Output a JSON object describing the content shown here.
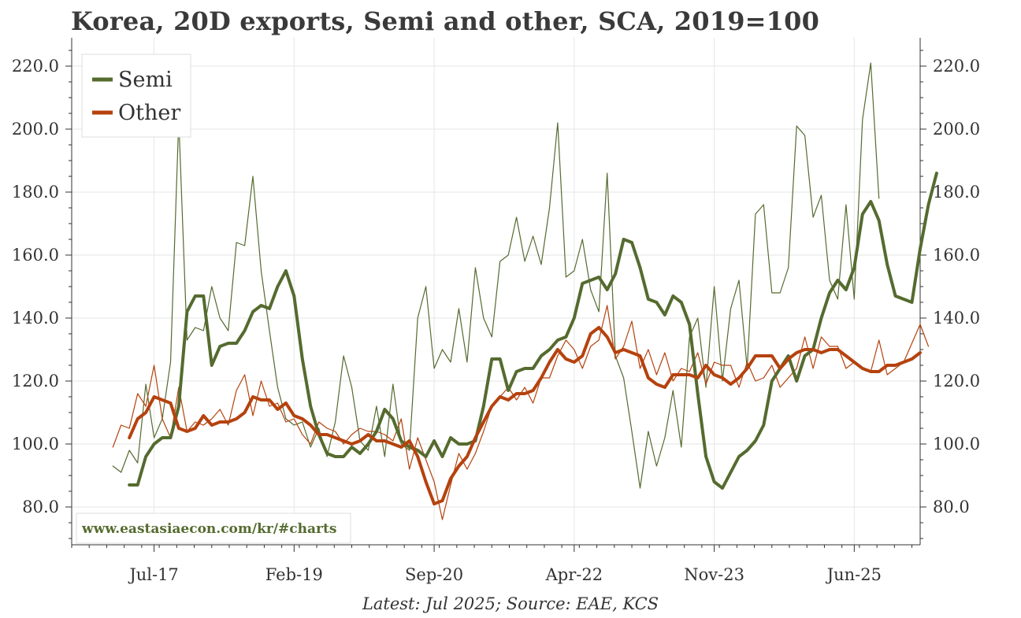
{
  "chart_data": {
    "type": "line",
    "title": "Korea, 20D exports, Semi and other, SCA, 2019=100",
    "xlabel": "",
    "ylabel": "",
    "x_tick_labels": [
      "Jul-17",
      "Feb-19",
      "Sep-20",
      "Apr-22",
      "Nov-23",
      "Jun-25"
    ],
    "y_tick_labels": [
      "80.0",
      "100.0",
      "120.0",
      "140.0",
      "160.0",
      "180.0",
      "200.0",
      "220.0"
    ],
    "y_ticks": [
      80,
      100,
      120,
      140,
      160,
      180,
      200,
      220
    ],
    "ylim": [
      68,
      229
    ],
    "xlim": [
      0,
      103
    ],
    "x_tick_positions": [
      10,
      27,
      44,
      61,
      78,
      95
    ],
    "grid": true,
    "legend_position": "top-left",
    "series": [
      {
        "name": "Semi (monthly)",
        "style": "thin",
        "color": "#556b2f",
        "start_index": 5,
        "values": [
          93,
          91,
          98,
          94,
          119,
          102,
          108,
          126,
          203,
          133,
          137,
          136,
          150,
          140,
          136,
          164,
          163,
          185,
          155,
          136,
          118,
          108,
          106,
          107,
          99,
          105,
          96,
          107,
          128,
          118,
          101,
          98,
          112,
          96,
          119,
          100,
          98,
          140,
          150,
          124,
          130,
          126,
          143,
          126,
          156,
          140,
          134,
          158,
          160,
          172,
          158,
          166,
          157,
          175,
          202,
          153,
          155,
          165,
          149,
          142,
          186,
          128,
          121,
          104,
          86,
          104,
          93,
          102,
          117,
          99,
          134,
          140,
          118,
          150,
          120,
          143,
          152,
          124,
          173,
          176,
          148,
          148,
          156,
          201,
          198,
          172,
          179,
          152,
          146,
          176,
          146,
          203,
          221,
          178
        ]
      },
      {
        "name": "Other (monthly)",
        "style": "thin",
        "color": "#b5420e",
        "start_index": 5,
        "values": [
          99,
          106,
          105,
          116,
          112,
          125,
          108,
          102,
          118,
          104,
          107,
          106,
          108,
          111,
          106,
          117,
          122,
          109,
          120,
          112,
          113,
          107,
          108,
          103,
          100,
          107,
          105,
          104,
          100,
          103,
          105,
          104,
          104,
          103,
          101,
          108,
          92,
          102,
          95,
          88,
          76,
          87,
          97,
          92,
          97,
          104,
          112,
          115,
          118,
          114,
          118,
          113,
          121,
          121,
          128,
          133,
          130,
          124,
          131,
          133,
          144,
          127,
          131,
          139,
          124,
          130,
          122,
          129,
          120,
          124,
          123,
          129,
          119,
          126,
          125,
          125,
          118,
          126,
          120,
          121,
          125,
          118,
          121,
          124,
          134,
          124,
          134,
          131,
          131,
          124,
          126,
          124,
          123,
          133,
          122,
          124,
          126,
          132,
          138,
          131
        ]
      },
      {
        "name": "Semi",
        "style": "thick",
        "color": "#556b2f",
        "start_index": 7,
        "values": [
          87,
          87,
          96,
          100,
          102,
          102,
          112,
          142,
          147,
          147,
          125,
          131,
          132,
          132,
          136,
          142,
          144,
          143,
          150,
          155,
          147,
          127,
          112,
          103,
          97,
          96,
          96,
          99,
          97,
          100,
          104,
          111,
          108,
          101,
          99,
          98,
          96,
          101,
          96,
          102,
          100,
          100,
          101,
          112,
          127,
          127,
          117,
          123,
          124,
          124,
          128,
          130,
          133,
          134,
          140,
          151,
          152,
          153,
          149,
          154,
          165,
          164,
          156,
          146,
          145,
          141,
          147,
          145,
          138,
          116,
          96,
          88,
          86,
          91,
          96,
          98,
          101,
          106,
          120,
          124,
          128,
          120,
          128,
          130,
          140,
          148,
          152,
          149,
          156,
          173,
          177,
          171,
          157,
          147,
          146,
          145,
          162,
          176,
          186
        ]
      },
      {
        "name": "Other",
        "style": "thick",
        "color": "#b5420e",
        "start_index": 7,
        "values": [
          102,
          108,
          110,
          115,
          114,
          113,
          105,
          104,
          105,
          109,
          106,
          107,
          107,
          108,
          110,
          115,
          114,
          114,
          111,
          113,
          109,
          108,
          106,
          103,
          103,
          102,
          101,
          100,
          101,
          103,
          101,
          101,
          100,
          99,
          101,
          96,
          88,
          81,
          82,
          89,
          93,
          96,
          102,
          107,
          112,
          115,
          114,
          116,
          116,
          117,
          121,
          126,
          130,
          127,
          126,
          128,
          135,
          137,
          134,
          129,
          130,
          129,
          128,
          121,
          119,
          118,
          122,
          122,
          122,
          121,
          125,
          122,
          121,
          119,
          121,
          124,
          128,
          128,
          128,
          124,
          127,
          129,
          130,
          130,
          129,
          130,
          130,
          128,
          126,
          124,
          123,
          123,
          125,
          125,
          126,
          127,
          129
        ]
      }
    ],
    "watermark": "www.eastasiaecon.com/kr/#charts",
    "footnote": "Latest: Jul 2025; Source: EAE, KCS"
  },
  "legend": {
    "semi_label": "Semi",
    "other_label": "Other"
  },
  "colors": {
    "semi": "#556b2f",
    "other": "#b5420e",
    "grid": "#e6e6e6",
    "axis": "#333333"
  }
}
